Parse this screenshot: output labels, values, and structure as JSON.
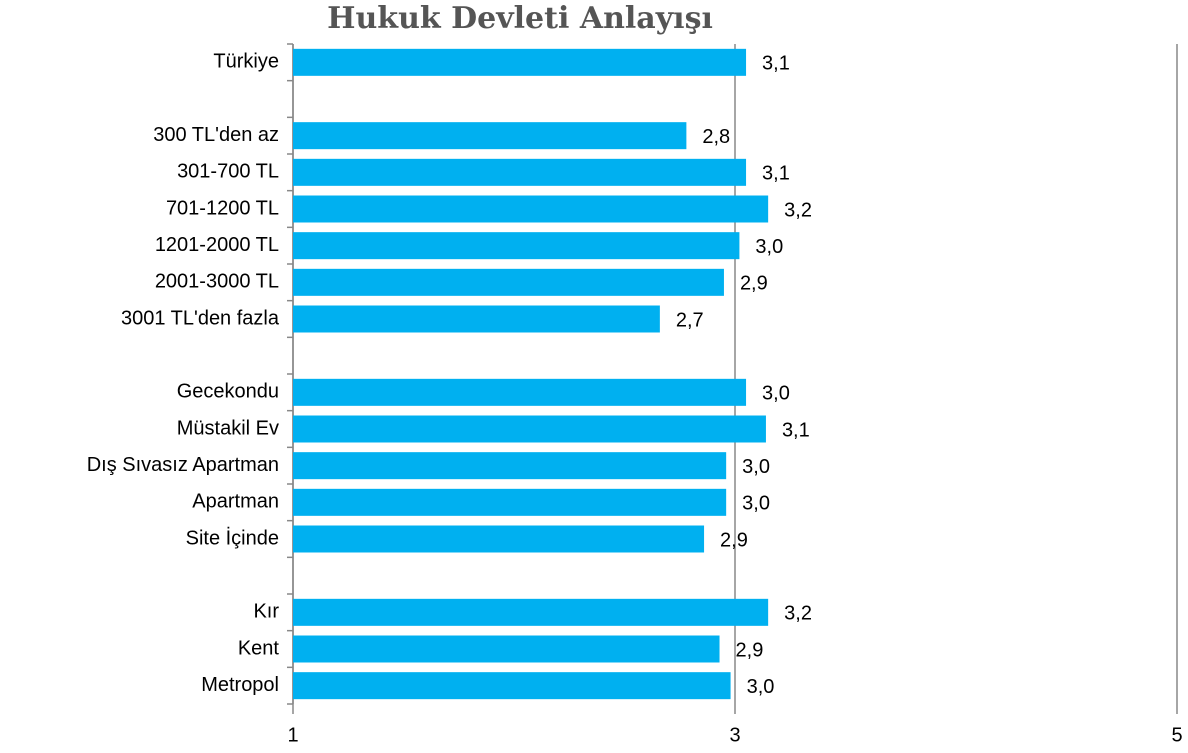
{
  "chart_data": {
    "type": "bar",
    "orientation": "horizontal",
    "title": "Hukuk Devleti Anlayışı",
    "categories": [
      "Türkiye",
      null,
      "300 TL'den az",
      "301-700 TL",
      "701-1200 TL",
      "1201-2000 TL",
      "2001-3000 TL",
      "3001 TL'den fazla",
      null,
      "Gecekondu",
      "Müstakil Ev",
      "Dış Sıvasız Apartman",
      "Apartman",
      "Site İçinde",
      null,
      "Kır",
      "Kent",
      "Metropol"
    ],
    "values": [
      3.05,
      null,
      2.78,
      3.05,
      3.15,
      3.02,
      2.95,
      2.66,
      null,
      3.05,
      3.14,
      2.96,
      2.96,
      2.86,
      null,
      3.15,
      2.93,
      2.98
    ],
    "value_labels": [
      "3,1",
      null,
      "2,8",
      "3,1",
      "3,2",
      "3,0",
      "2,9",
      "2,7",
      null,
      "3,0",
      "3,1",
      "3,0",
      "3,0",
      "2,9",
      null,
      "3,2",
      "2,9",
      "3,0"
    ],
    "color": "#00b0f0",
    "xlim": [
      1,
      5
    ],
    "xticks": [
      1,
      3,
      5
    ],
    "grid": true
  }
}
